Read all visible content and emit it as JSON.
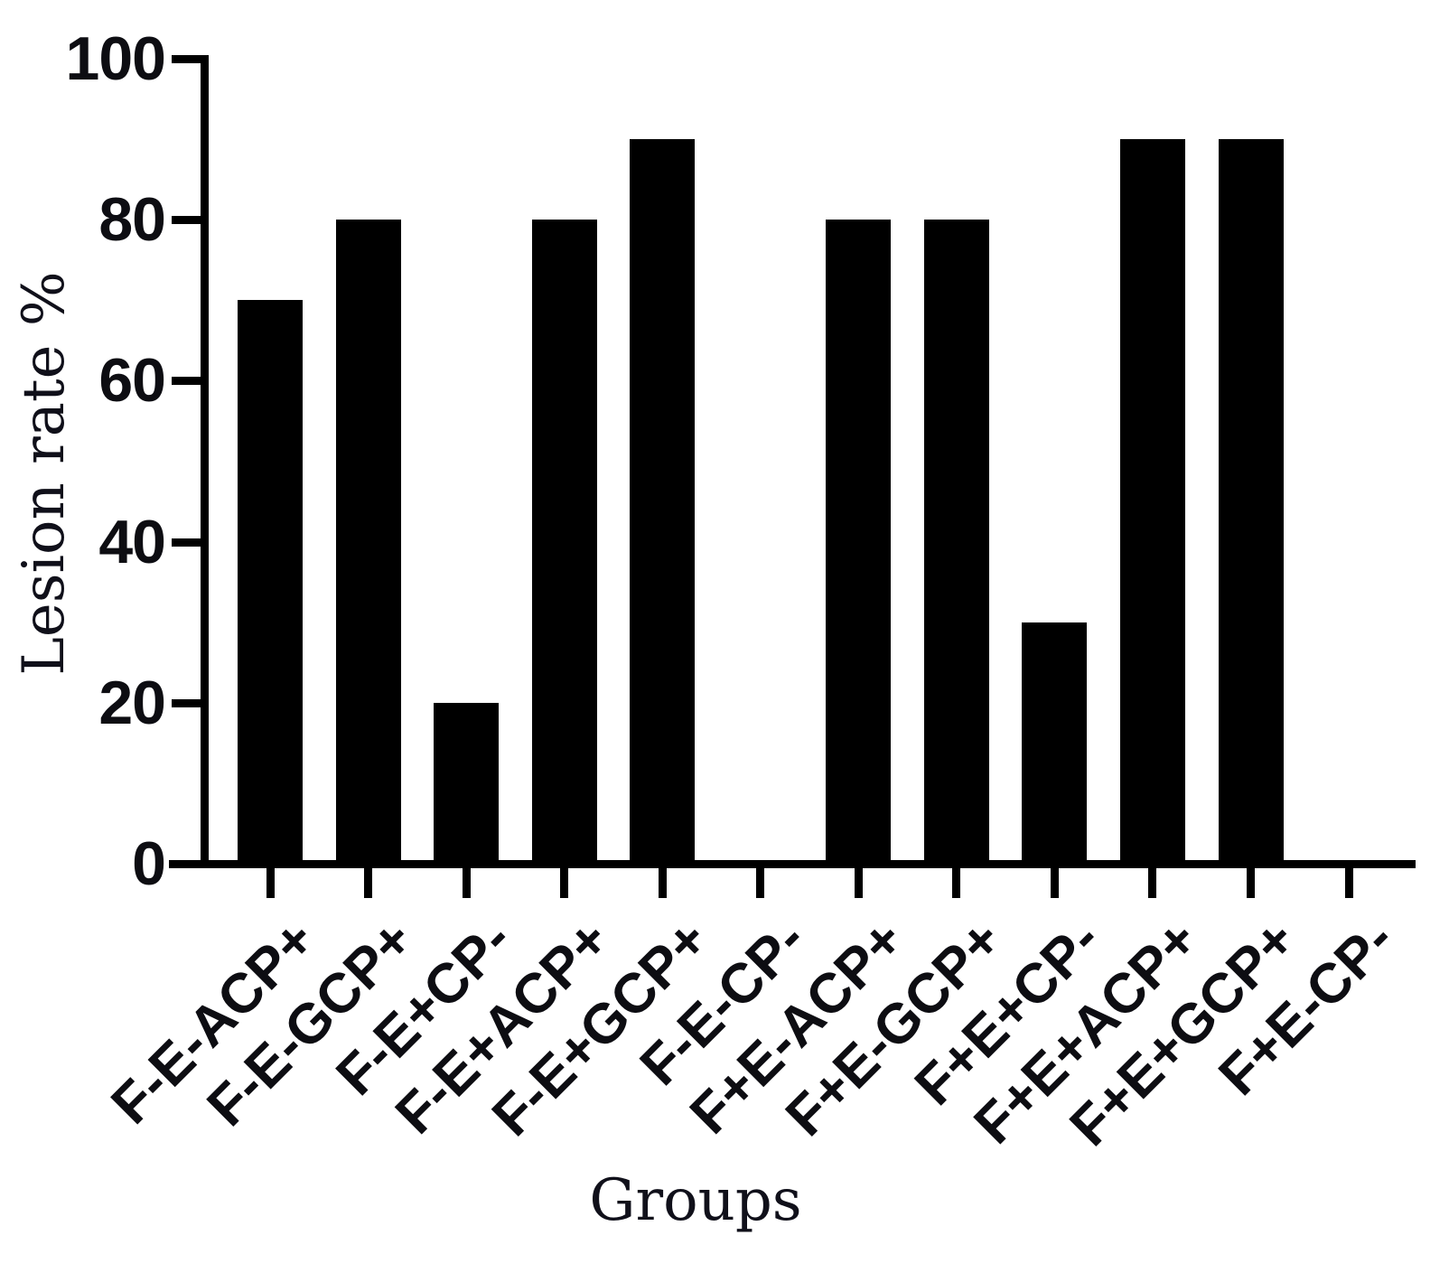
{
  "chart_data": {
    "type": "bar",
    "xlabel": "Groups",
    "ylabel": "Lesion rate %",
    "categories": [
      "F-E-ACP+",
      "F-E-GCP+",
      "F-E+CP-",
      "F-E+ACP+",
      "F-E+GCP+",
      "F-E-CP-",
      "F+E-ACP+",
      "F+E-GCP+",
      "F+E+CP-",
      "F+E+ACP+",
      "F+E+GCP+",
      "F+E-CP-"
    ],
    "values": [
      70,
      80,
      20,
      80,
      90,
      0,
      80,
      80,
      30,
      90,
      90,
      0
    ],
    "ylim": [
      0,
      100
    ],
    "yticks": [
      0,
      20,
      40,
      60,
      80,
      100
    ],
    "bar_color": "#000000",
    "axis_color": "#000000",
    "text_color": "#0d0d12",
    "background": "#ffffff",
    "grid": false,
    "legend": "none",
    "x_label_rotation_deg": -45
  }
}
